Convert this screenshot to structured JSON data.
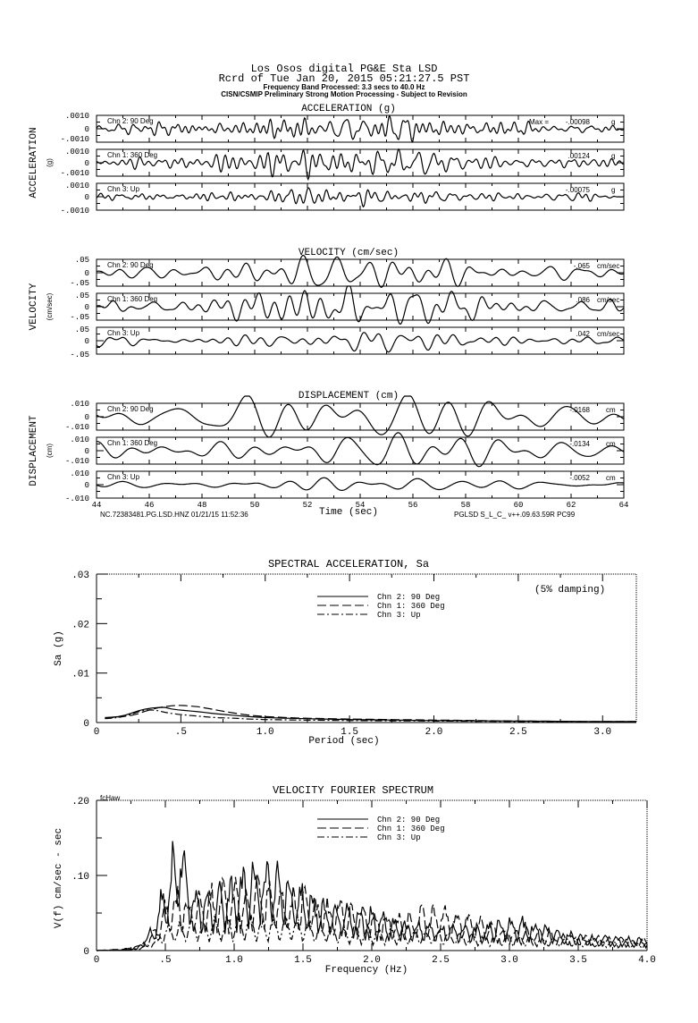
{
  "header": {
    "line1": "Los Osos digital    PG&E Sta LSD",
    "line2": "Rcrd of Tue Jan 20, 2015 05:21:27.5 PST",
    "line3": "Frequency Band Processed: 3.3 secs to 40.0 Hz",
    "line4": "CISN/CSMIP Preliminary Strong Motion Processing - Subject to Revision"
  },
  "footer": {
    "left": "NC.72383481.PG.LSD.HNZ 01/21/15 11:52:36",
    "right": "PGLSD  S_L_C_  v++.09.63.59R PC99",
    "xlabel": "Time (sec)"
  },
  "chart_data": [
    {
      "type": "line",
      "title": "ACCELERATION (g)",
      "ylabel": "ACCELERATION",
      "yunit": "(g)",
      "xlabel": "Time (sec)",
      "xlim": [
        44,
        64
      ],
      "xticks": [
        "44",
        "46",
        "48",
        "50",
        "52",
        "54",
        "56",
        "58",
        "60",
        "62",
        "64"
      ],
      "series": [
        {
          "name": "Chn 2: 90 Deg",
          "max_label": "Max =",
          "max": "-.00098",
          "unit": "g",
          "yticks": [
            ".0010",
            "0",
            "-.0010"
          ],
          "ylim": [
            -0.001,
            0.001
          ],
          "peak": 0.00098,
          "seed": 11
        },
        {
          "name": "Chn 1: 360 Deg",
          "max": ".00124",
          "unit": "g",
          "yticks": [
            ".0010",
            "0",
            "-.0010"
          ],
          "ylim": [
            -0.001,
            0.001
          ],
          "peak": 0.00124,
          "seed": 23
        },
        {
          "name": "Chn 3: Up",
          "max": "-.00075",
          "unit": "g",
          "yticks": [
            ".0010",
            "0",
            "-.0010"
          ],
          "ylim": [
            -0.001,
            0.001
          ],
          "peak": 0.00075,
          "seed": 37
        }
      ]
    },
    {
      "type": "line",
      "title": "VELOCITY (cm/sec)",
      "ylabel": "VELOCITY",
      "yunit": "(cm/sec)",
      "xlim": [
        44,
        64
      ],
      "series": [
        {
          "name": "Chn 2: 90 Deg",
          "max": "-.065",
          "unit": "cm/sec",
          "yticks": [
            ".05",
            "0",
            "-.05"
          ],
          "ylim": [
            -0.05,
            0.05
          ],
          "peak": 0.065,
          "seed": 41
        },
        {
          "name": "Chn 1: 360 Deg",
          "max": ".086",
          "unit": "cm/sec",
          "yticks": [
            ".05",
            "0",
            "-.05"
          ],
          "ylim": [
            -0.05,
            0.05
          ],
          "peak": 0.086,
          "seed": 53
        },
        {
          "name": "Chn 3: Up",
          "max": ".042",
          "unit": "cm/sec",
          "yticks": [
            ".05",
            "0",
            "-.05"
          ],
          "ylim": [
            -0.05,
            0.05
          ],
          "peak": 0.042,
          "seed": 67
        }
      ]
    },
    {
      "type": "line",
      "title": "DISPLACEMENT (cm)",
      "ylabel": "DISPLACEMENT",
      "yunit": "(cm)",
      "xlim": [
        44,
        64
      ],
      "series": [
        {
          "name": "Chn 2: 90 Deg",
          "max": "-.0168",
          "unit": "cm",
          "yticks": [
            ".010",
            "0",
            "-.010"
          ],
          "ylim": [
            -0.01,
            0.01
          ],
          "peak": 0.0168,
          "seed": 71
        },
        {
          "name": "Chn 1: 360 Deg",
          "max": "-.0134",
          "unit": "cm",
          "yticks": [
            ".010",
            "0",
            "-.010"
          ],
          "ylim": [
            -0.01,
            0.01
          ],
          "peak": 0.0134,
          "seed": 83
        },
        {
          "name": "Chn 3: Up",
          "max": "-.0052",
          "unit": "cm",
          "yticks": [
            ".010",
            "0",
            "-.010"
          ],
          "ylim": [
            -0.01,
            0.01
          ],
          "peak": 0.0052,
          "seed": 97
        }
      ]
    },
    {
      "type": "line",
      "title": "SPECTRAL ACCELERATION, Sa",
      "xlabel": "Period (sec)",
      "ylabel": "Sa (g)",
      "annotation": "(5% damping)",
      "xlim": [
        0,
        3.2
      ],
      "ylim": [
        0,
        0.03
      ],
      "xticks": [
        "0",
        ".5",
        "1.0",
        "1.5",
        "2.0",
        "2.5",
        "3.0"
      ],
      "yticks": [
        "0",
        ".01",
        ".02",
        ".03"
      ],
      "legend": "top-center",
      "x": [
        0.05,
        0.1,
        0.15,
        0.2,
        0.25,
        0.3,
        0.35,
        0.4,
        0.45,
        0.5,
        0.6,
        0.7,
        0.8,
        0.9,
        1.0,
        1.2,
        1.5,
        2.0,
        2.5,
        3.0,
        3.2
      ],
      "series": [
        {
          "name": "Chn 2: 90 Deg",
          "style": "solid",
          "values": [
            0.001,
            0.0011,
            0.0013,
            0.0018,
            0.0024,
            0.0028,
            0.003,
            0.0031,
            0.0027,
            0.0025,
            0.0022,
            0.0018,
            0.0015,
            0.0012,
            0.001,
            0.0008,
            0.0006,
            0.0004,
            0.0003,
            0.0002,
            0.0002
          ]
        },
        {
          "name": "Chn 1: 360 Deg",
          "style": "dashed",
          "values": [
            0.0009,
            0.001,
            0.0012,
            0.0014,
            0.0018,
            0.0024,
            0.0029,
            0.0032,
            0.0034,
            0.0035,
            0.0032,
            0.0026,
            0.002,
            0.0015,
            0.0012,
            0.0009,
            0.0007,
            0.0005,
            0.0003,
            0.0002,
            0.0002
          ]
        },
        {
          "name": "Chn 3: Up",
          "style": "dashdot",
          "values": [
            0.0008,
            0.0009,
            0.0011,
            0.0016,
            0.0022,
            0.0026,
            0.0025,
            0.0021,
            0.0018,
            0.0016,
            0.0013,
            0.001,
            0.0009,
            0.0007,
            0.0006,
            0.0005,
            0.0004,
            0.0003,
            0.0002,
            0.0001,
            0.0001
          ]
        }
      ]
    },
    {
      "type": "line",
      "title": "VELOCITY FOURIER SPECTRUM",
      "corner_label": "fcHaw",
      "xlabel": "Frequency (Hz)",
      "ylabel": "V(f)    cm/sec - sec",
      "xlim": [
        0,
        4.0
      ],
      "ylim": [
        0,
        0.2
      ],
      "xticks": [
        "0",
        ".5",
        "1.0",
        "1.5",
        "2.0",
        "2.5",
        "3.0",
        "3.5",
        "4.0"
      ],
      "yticks": [
        "0",
        ".10",
        ".20"
      ],
      "legend": "top-center",
      "x": [
        0,
        0.2,
        0.3,
        0.4,
        0.5,
        0.6,
        0.7,
        0.8,
        1.0,
        1.2,
        1.4,
        1.6,
        1.8,
        2.0,
        2.2,
        2.5,
        2.8,
        3.0,
        3.5,
        4.0
      ],
      "series": [
        {
          "name": "Chn 2: 90 Deg",
          "style": "solid",
          "values": [
            0,
            0.002,
            0.006,
            0.03,
            0.09,
            0.165,
            0.08,
            0.07,
            0.09,
            0.12,
            0.1,
            0.07,
            0.06,
            0.05,
            0.04,
            0.035,
            0.03,
            0.045,
            0.02,
            0.015
          ]
        },
        {
          "name": "Chn 1: 360 Deg",
          "style": "dashed",
          "values": [
            0,
            0.002,
            0.005,
            0.02,
            0.06,
            0.08,
            0.07,
            0.08,
            0.085,
            0.09,
            0.08,
            0.07,
            0.06,
            0.05,
            0.045,
            0.06,
            0.04,
            0.03,
            0.02,
            0.015
          ]
        },
        {
          "name": "Chn 3: Up",
          "style": "dashdot",
          "values": [
            0,
            0.001,
            0.003,
            0.012,
            0.03,
            0.035,
            0.04,
            0.04,
            0.045,
            0.04,
            0.04,
            0.035,
            0.03,
            0.03,
            0.025,
            0.025,
            0.02,
            0.02,
            0.015,
            0.01
          ]
        }
      ]
    }
  ]
}
